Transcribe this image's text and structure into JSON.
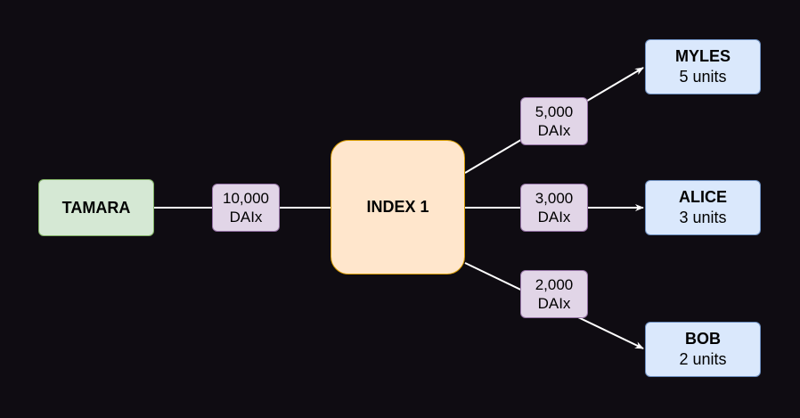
{
  "source": {
    "name": "TAMARA"
  },
  "index": {
    "name": "INDEX 1"
  },
  "inflow": {
    "amount": "10,000",
    "token": "DAIx"
  },
  "recipients": [
    {
      "name": "MYLES",
      "units": "5 units",
      "amount": "5,000",
      "token": "DAIx"
    },
    {
      "name": "ALICE",
      "units": "3 units",
      "amount": "3,000",
      "token": "DAIx"
    },
    {
      "name": "BOB",
      "units": "2 units",
      "amount": "2,000",
      "token": "DAIx"
    }
  ],
  "colors": {
    "background": "#0f0c12",
    "edge": "#ffffff",
    "source_fill": "#d5e8d4",
    "index_fill": "#ffe6cc",
    "recipient_fill": "#dae8fc",
    "amount_fill": "#e1d5e7"
  }
}
